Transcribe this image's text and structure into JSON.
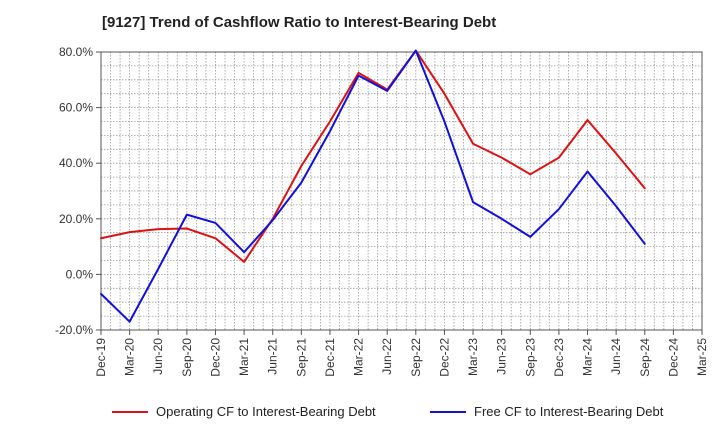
{
  "chart_data": {
    "type": "line",
    "title": "[9127]  Trend of Cashflow Ratio to Interest-Bearing Debt",
    "x": [
      "Dec-19",
      "Mar-20",
      "Jun-20",
      "Sep-20",
      "Dec-20",
      "Mar-21",
      "Jun-21",
      "Sep-21",
      "Dec-21",
      "Mar-22",
      "Jun-22",
      "Sep-22",
      "Dec-22",
      "Mar-23",
      "Jun-23",
      "Sep-23",
      "Dec-23",
      "Mar-24",
      "Jun-24",
      "Sep-24",
      "Dec-24",
      "Mar-25"
    ],
    "ylim": [
      -20,
      80
    ],
    "yticks": [
      -20,
      0,
      20,
      40,
      60,
      80
    ],
    "ytick_format": "{v}.0%",
    "grid": true,
    "legend_position": "bottom",
    "series": [
      {
        "name": "Operating CF to Interest-Bearing Debt",
        "color": "#dd1111",
        "values": [
          13.0,
          15.2,
          16.3,
          16.5,
          13.0,
          4.5,
          20.0,
          39.0,
          55.0,
          72.5,
          66.5,
          80.5,
          65.0,
          47.0,
          42.0,
          36.0,
          42.0,
          55.5,
          43.5,
          31.0,
          null,
          null
        ]
      },
      {
        "name": "Free CF to Interest-Bearing Debt",
        "color": "#1111dd",
        "values": [
          -7.0,
          -17.0,
          2.0,
          21.5,
          18.5,
          8.0,
          19.5,
          33.0,
          51.5,
          71.5,
          66.0,
          80.5,
          55.0,
          26.0,
          20.0,
          13.5,
          23.5,
          37.0,
          24.5,
          11.0,
          null,
          null
        ]
      }
    ]
  }
}
